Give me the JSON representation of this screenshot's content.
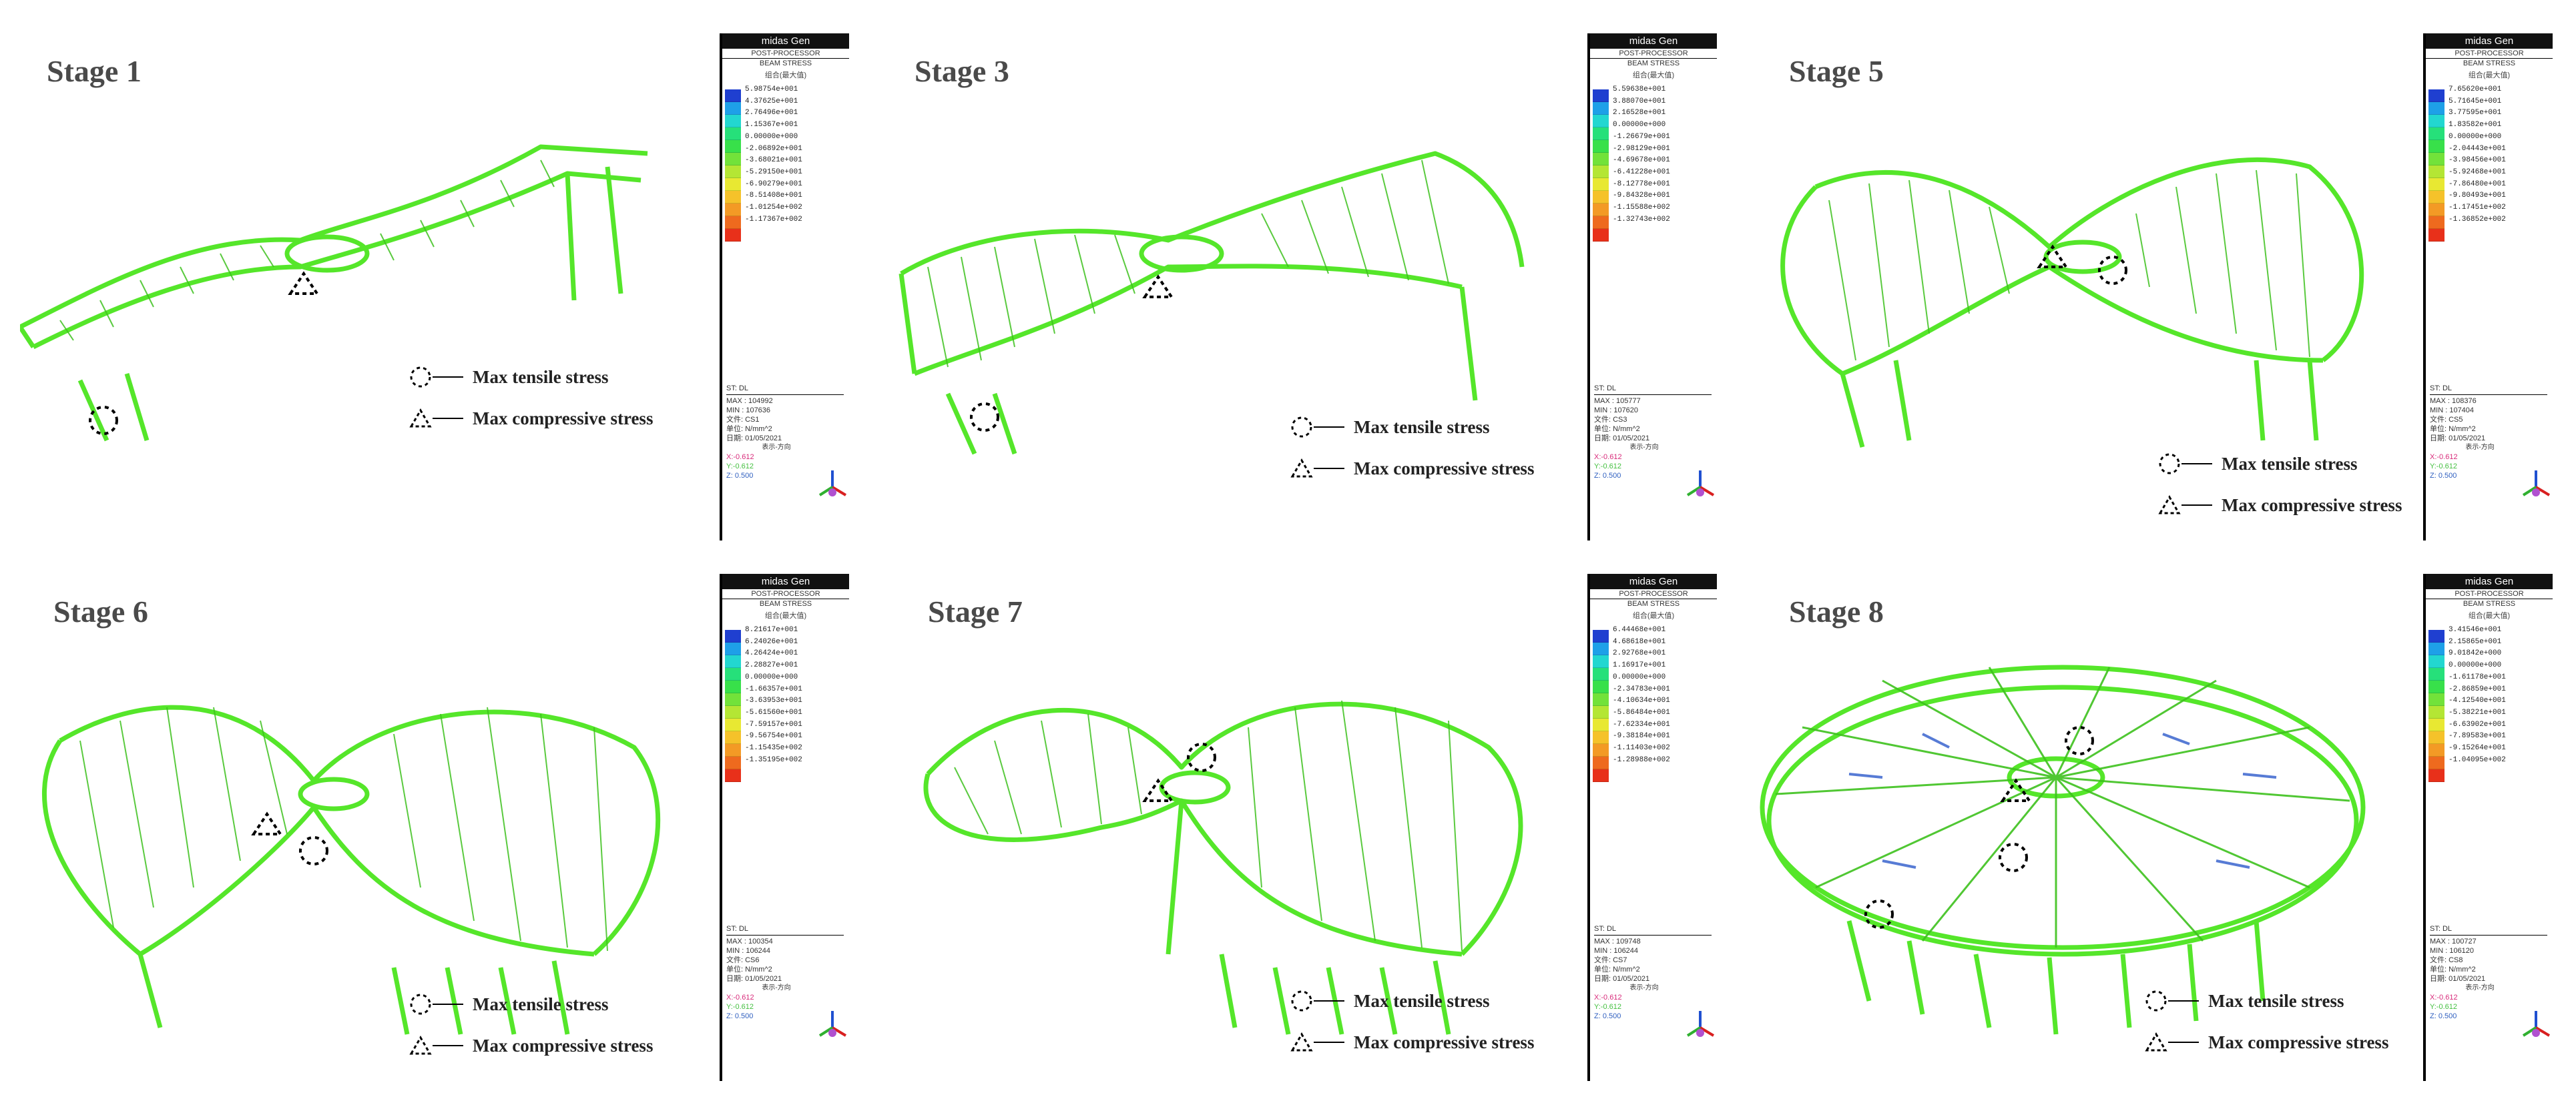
{
  "legend_keys": {
    "tensile": "Max tensile stress",
    "compressive": "Max compressive stress"
  },
  "colorbar_common": {
    "app": "midas Gen",
    "module": "POST-PROCESSOR",
    "result": "BEAM STRESS",
    "combo_note": "组合(最大值)",
    "unit": "单位: N/mm^2",
    "date": "日期: 01/05/2021",
    "view_note": "表示-方向",
    "x_dir": "X:-0.612",
    "y_dir": "Y:-0.612",
    "z_dir": "Z: 0.500",
    "st": "ST: DL",
    "colors": [
      "#1f3fd0",
      "#1ea0e8",
      "#22d7d0",
      "#26e07a",
      "#38e04a",
      "#72e23a",
      "#b4e634",
      "#e8e832",
      "#f5c22a",
      "#f39a25",
      "#ee6a1e",
      "#e8301a"
    ]
  },
  "stages": [
    {
      "title": "Stage 1",
      "file": "文件: CS1",
      "ticks": [
        "5.98754e+001",
        "4.37625e+001",
        "2.76496e+001",
        "1.15367e+001",
        "0.00000e+000",
        "-2.06892e+001",
        "-3.68021e+001",
        "-5.29150e+001",
        "-6.90279e+001",
        "-8.51408e+001",
        "-1.01254e+002",
        "-1.17367e+002"
      ],
      "max": "MAX : 104992",
      "min": "MIN : 107636"
    },
    {
      "title": "Stage 3",
      "file": "文件: CS3",
      "ticks": [
        "5.59638e+001",
        "3.88070e+001",
        "2.16528e+001",
        "0.00000e+000",
        "-1.26679e+001",
        "-2.98129e+001",
        "-4.69678e+001",
        "-6.41228e+001",
        "-8.12778e+001",
        "-9.84328e+001",
        "-1.15588e+002",
        "-1.32743e+002"
      ],
      "max": "MAX : 105777",
      "min": "MIN : 107620"
    },
    {
      "title": "Stage 5",
      "file": "文件: CS5",
      "ticks": [
        "7.65620e+001",
        "5.71645e+001",
        "3.77595e+001",
        "1.83582e+001",
        "0.00000e+000",
        "-2.04443e+001",
        "-3.98456e+001",
        "-5.92468e+001",
        "-7.86480e+001",
        "-9.80493e+001",
        "-1.17451e+002",
        "-1.36852e+002"
      ],
      "max": "MAX : 108376",
      "min": "MIN : 107404"
    },
    {
      "title": "Stage 6",
      "file": "文件: CS6",
      "ticks": [
        "8.21617e+001",
        "6.24026e+001",
        "4.26424e+001",
        "2.28827e+001",
        "0.00000e+000",
        "-1.66357e+001",
        "-3.63953e+001",
        "-5.61560e+001",
        "-7.59157e+001",
        "-9.56754e+001",
        "-1.15435e+002",
        "-1.35195e+002"
      ],
      "max": "MAX : 100354",
      "min": "MIN : 106244"
    },
    {
      "title": "Stage 7",
      "file": "文件: CS7",
      "ticks": [
        "6.44468e+001",
        "4.68618e+001",
        "2.92768e+001",
        "1.16917e+001",
        "0.00000e+000",
        "-2.34783e+001",
        "-4.10634e+001",
        "-5.86484e+001",
        "-7.62334e+001",
        "-9.38184e+001",
        "-1.11403e+002",
        "-1.28988e+002"
      ],
      "max": "MAX : 109748",
      "min": "MIN : 106244"
    },
    {
      "title": "Stage 8",
      "file": "文件: CS8",
      "ticks": [
        "3.41546e+001",
        "2.15865e+001",
        "9.01842e+000",
        "0.00000e+000",
        "-1.61178e+001",
        "-2.86859e+001",
        "-4.12540e+001",
        "-5.38221e+001",
        "-6.63902e+001",
        "-7.89583e+001",
        "-9.15264e+001",
        "-1.04095e+002"
      ],
      "max": "MAX : 100727",
      "min": "MIN : 106120"
    }
  ]
}
